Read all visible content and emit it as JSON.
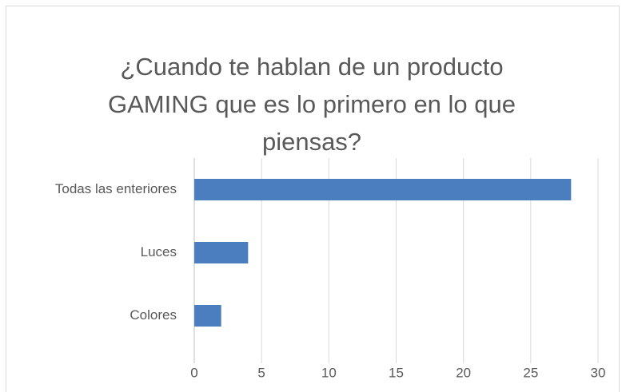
{
  "chart_data": {
    "type": "hbar",
    "title": "¿Cuando te hablan de un producto GAMING que es lo primero en lo que piensas?",
    "categories": [
      "Todas las enteriores",
      "Luces",
      "Colores"
    ],
    "values": [
      28,
      4,
      2
    ],
    "color": "#4a7ebf",
    "xlim": [
      0,
      30
    ],
    "xticks": [
      0,
      5,
      10,
      15,
      20,
      25,
      30
    ],
    "grid": true
  }
}
